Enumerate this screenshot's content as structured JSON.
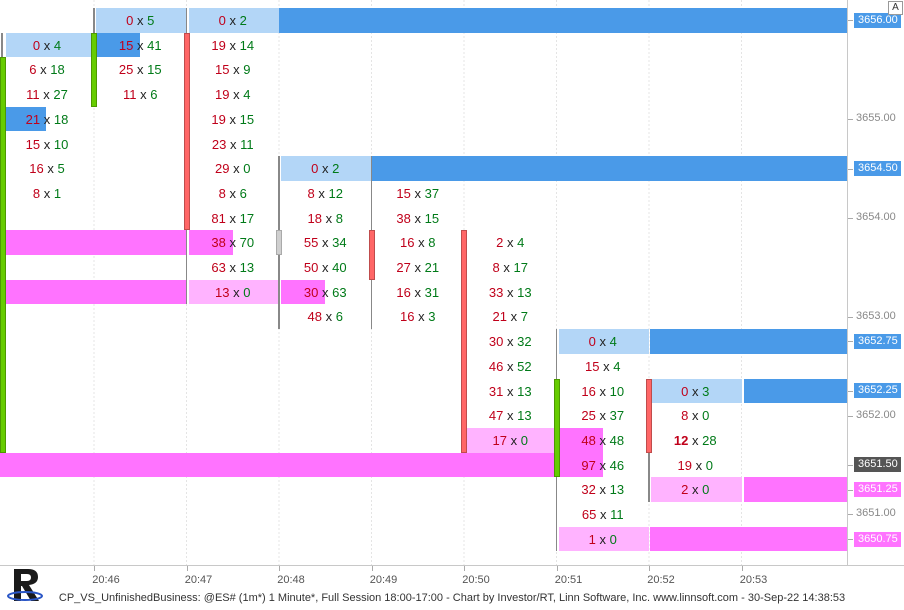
{
  "window": {
    "title": "CP_VS_UnfinishedBusiness: @ES# (1m*) 1 Minute*, Full Session 18:00-17:00 - Chart by Investor/RT, Linn Software, Inc. www.linnsoft.com - 30-Sep-22 14:38:53"
  },
  "axis_toggle_label": "A",
  "chart_data": {
    "type": "footprint",
    "price_axis": {
      "min": 3650.5,
      "max": 3656.0,
      "tick_size": 0.25,
      "labels": [
        "3656.00",
        "3655.00",
        "3654.50",
        "3654.00",
        "3653.00",
        "3652.75",
        "3652.25",
        "3652.00",
        "3651.50",
        "3651.25",
        "3651.00",
        "3650.75"
      ],
      "label_values": [
        3656.0,
        3655.0,
        3654.5,
        3654.0,
        3653.0,
        3652.75,
        3652.25,
        3652.0,
        3651.5,
        3651.25,
        3651.0,
        3650.75
      ],
      "tagged": {
        "3656.00": "#4a9ae8",
        "3654.50": "#4a9ae8",
        "3652.75": "#4a9ae8",
        "3652.25": "#4a9ae8",
        "3651.50": "#555555",
        "3651.25": "#ff73ff",
        "3650.75": "#ff73ff"
      }
    },
    "time_labels": [
      "20:46",
      "20:47",
      "20:48",
      "20:49",
      "20:50",
      "20:51",
      "20:52",
      "20:53"
    ],
    "colors": {
      "bid": "#c0001a",
      "ask": "#007a18",
      "up": "#66cc00",
      "down": "#ff6666",
      "unfinished_high": "#4a9ae8",
      "unfinished_low": "#ff73ff",
      "imbalance_bid_light": "#ffb3ff",
      "imbalance_ask_light": "#b3d6f7"
    },
    "columns": [
      {
        "time_index": -0.5,
        "candle": "up",
        "open": 3651.75,
        "close": 3655.5,
        "high": 3655.75,
        "low": 3651.75,
        "cells": [
          {
            "price": 3655.75,
            "bid": "0",
            "ask": "4",
            "hl": "ask_light"
          },
          {
            "price": 3655.5,
            "bid": "6",
            "ask": "18"
          },
          {
            "price": 3655.25,
            "bid": "11",
            "ask": "27"
          },
          {
            "price": 3655.0,
            "bid": "21",
            "ask": "18",
            "hl": "bid_strong"
          },
          {
            "price": 3654.75,
            "bid": "15",
            "ask": "10"
          },
          {
            "price": 3654.5,
            "bid": "16",
            "ask": "5"
          },
          {
            "price": 3654.25,
            "bid": "8",
            "ask": "1"
          }
        ]
      },
      {
        "time_index": 0,
        "candle": "up",
        "open": 3655.25,
        "close": 3655.75,
        "high": 3656.0,
        "low": 3655.25,
        "cells": [
          {
            "price": 3656.0,
            "bid": "0",
            "ask": "5",
            "hl": "ask_light"
          },
          {
            "price": 3655.75,
            "bid": "15",
            "ask": "41",
            "hl": "bid_strong"
          },
          {
            "price": 3655.5,
            "bid": "25",
            "ask": "15"
          },
          {
            "price": 3655.25,
            "bid": "11",
            "ask": "6"
          }
        ]
      },
      {
        "time_index": 1,
        "candle": "down",
        "open": 3655.75,
        "close": 3654.0,
        "high": 3656.0,
        "low": 3653.25,
        "cells": [
          {
            "price": 3656.0,
            "bid": "0",
            "ask": "2",
            "hl": "ask_light"
          },
          {
            "price": 3655.75,
            "bid": "19",
            "ask": "14"
          },
          {
            "price": 3655.5,
            "bid": "15",
            "ask": "9"
          },
          {
            "price": 3655.25,
            "bid": "19",
            "ask": "4"
          },
          {
            "price": 3655.0,
            "bid": "19",
            "ask": "15"
          },
          {
            "price": 3654.75,
            "bid": "23",
            "ask": "11"
          },
          {
            "price": 3654.5,
            "bid": "29",
            "ask": "0"
          },
          {
            "price": 3654.25,
            "bid": "8",
            "ask": "6"
          },
          {
            "price": 3654.0,
            "bid": "81",
            "ask": "17"
          },
          {
            "price": 3653.75,
            "bid": "38",
            "ask": "70",
            "hl": "bid_strong"
          },
          {
            "price": 3653.5,
            "bid": "63",
            "ask": "13"
          },
          {
            "price": 3653.25,
            "bid": "13",
            "ask": "0",
            "hl": "bid_light"
          }
        ]
      },
      {
        "time_index": 2,
        "candle": "doji",
        "open": 3653.75,
        "close": 3653.75,
        "high": 3654.5,
        "low": 3653.0,
        "cells": [
          {
            "price": 3654.5,
            "bid": "0",
            "ask": "2",
            "hl": "ask_light"
          },
          {
            "price": 3654.25,
            "bid": "8",
            "ask": "12"
          },
          {
            "price": 3654.0,
            "bid": "18",
            "ask": "8"
          },
          {
            "price": 3653.75,
            "bid": "55",
            "ask": "34"
          },
          {
            "price": 3653.5,
            "bid": "50",
            "ask": "40"
          },
          {
            "price": 3653.25,
            "bid": "30",
            "ask": "63",
            "hl": "bid_strong"
          },
          {
            "price": 3653.0,
            "bid": "48",
            "ask": "6"
          }
        ]
      },
      {
        "time_index": 3,
        "candle": "down",
        "open": 3653.75,
        "close": 3653.5,
        "high": 3654.5,
        "low": 3653.0,
        "cells": [
          {
            "price": 3654.25,
            "bid": "15",
            "ask": "37"
          },
          {
            "price": 3654.0,
            "bid": "38",
            "ask": "15"
          },
          {
            "price": 3653.75,
            "bid": "16",
            "ask": "8"
          },
          {
            "price": 3653.5,
            "bid": "27",
            "ask": "21"
          },
          {
            "price": 3653.25,
            "bid": "16",
            "ask": "31"
          },
          {
            "price": 3653.0,
            "bid": "16",
            "ask": "3"
          }
        ]
      },
      {
        "time_index": 4,
        "candle": "down",
        "open": 3653.75,
        "close": 3651.75,
        "high": 3653.75,
        "low": 3651.75,
        "cells": [
          {
            "price": 3653.75,
            "bid": "2",
            "ask": "4"
          },
          {
            "price": 3653.5,
            "bid": "8",
            "ask": "17"
          },
          {
            "price": 3653.25,
            "bid": "33",
            "ask": "13"
          },
          {
            "price": 3653.0,
            "bid": "21",
            "ask": "7"
          },
          {
            "price": 3652.75,
            "bid": "30",
            "ask": "32"
          },
          {
            "price": 3652.5,
            "bid": "46",
            "ask": "52"
          },
          {
            "price": 3652.25,
            "bid": "31",
            "ask": "13"
          },
          {
            "price": 3652.0,
            "bid": "47",
            "ask": "13"
          },
          {
            "price": 3651.75,
            "bid": "17",
            "ask": "0",
            "hl": "bid_light"
          }
        ]
      },
      {
        "time_index": 5,
        "candle": "up",
        "open": 3651.5,
        "close": 3652.25,
        "high": 3652.75,
        "low": 3650.75,
        "cells": [
          {
            "price": 3652.75,
            "bid": "0",
            "ask": "4",
            "hl": "ask_light"
          },
          {
            "price": 3652.5,
            "bid": "15",
            "ask": "4"
          },
          {
            "price": 3652.25,
            "bid": "16",
            "ask": "10"
          },
          {
            "price": 3652.0,
            "bid": "25",
            "ask": "37"
          },
          {
            "price": 3651.75,
            "bid": "48",
            "ask": "48",
            "hl": "bid_strong"
          },
          {
            "price": 3651.5,
            "bid": "97",
            "ask": "46",
            "hl": "bid_strong"
          },
          {
            "price": 3651.25,
            "bid": "32",
            "ask": "13"
          },
          {
            "price": 3651.0,
            "bid": "65",
            "ask": "11"
          },
          {
            "price": 3650.75,
            "bid": "1",
            "ask": "0",
            "hl": "bid_light"
          }
        ]
      },
      {
        "time_index": 6,
        "candle": "down",
        "open": 3652.25,
        "close": 3651.75,
        "high": 3652.25,
        "low": 3651.25,
        "cells": [
          {
            "price": 3652.25,
            "bid": "0",
            "ask": "3",
            "hl": "ask_light"
          },
          {
            "price": 3652.0,
            "bid": "8",
            "ask": "0"
          },
          {
            "price": 3651.75,
            "bid": "12",
            "ask": "28",
            "bold": true
          },
          {
            "price": 3651.5,
            "bid": "19",
            "ask": "0"
          },
          {
            "price": 3651.25,
            "bid": "2",
            "ask": "0",
            "hl": "bid_light"
          }
        ]
      }
    ],
    "unfinished_lines": [
      {
        "price": 3656.0,
        "color": "#4a9ae8",
        "from_index": 1
      },
      {
        "price": 3654.5,
        "color": "#4a9ae8",
        "from_index": 3
      },
      {
        "price": 3652.75,
        "color": "#4a9ae8",
        "from_index": 6
      },
      {
        "price": 3652.25,
        "color": "#4a9ae8",
        "from_index": 7
      },
      {
        "price": 3653.75,
        "color": "#ff73ff",
        "from_index": -1,
        "to_index": 1
      },
      {
        "price": 3653.25,
        "color": "#ff73ff",
        "from_index": -1,
        "to_index": 1
      },
      {
        "price": 3651.5,
        "color": "#ff73ff",
        "from_index": -1,
        "to_index": 5
      },
      {
        "price": 3651.25,
        "color": "#ff73ff",
        "from_index": 7
      },
      {
        "price": 3650.75,
        "color": "#ff73ff",
        "from_index": 6
      }
    ]
  }
}
